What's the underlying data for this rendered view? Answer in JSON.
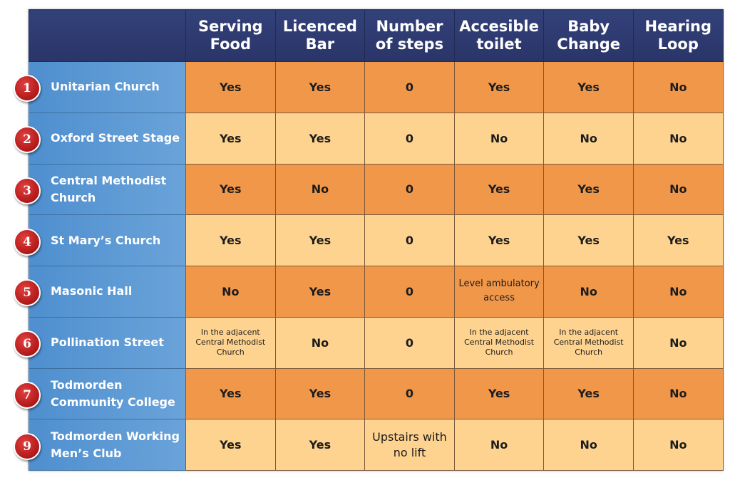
{
  "header": {
    "columns": [
      "Serving Food",
      "Licenced Bar",
      "Number of steps",
      "Accesible toilet",
      "Baby Change",
      "Hearing Loop"
    ]
  },
  "colors": {
    "header_bg": "#2e3a70",
    "venue_bg": "#5b97d3",
    "row_dark": "#f1974a",
    "row_light": "#fed38f",
    "badge_red": "#c01e1e"
  },
  "rows": [
    {
      "num": "1",
      "venue": "Unitarian Church",
      "food": "Yes",
      "bar": "Yes",
      "steps": "0",
      "toilet": "Yes",
      "baby": "Yes",
      "loop": "No"
    },
    {
      "num": "2",
      "venue": "Oxford Street Stage",
      "food": "Yes",
      "bar": "Yes",
      "steps": "0",
      "toilet": "No",
      "baby": "No",
      "loop": "No"
    },
    {
      "num": "3",
      "venue": "Central Methodist Church",
      "food": "Yes",
      "bar": "No",
      "steps": "0",
      "toilet": "Yes",
      "baby": "Yes",
      "loop": "No"
    },
    {
      "num": "4",
      "venue": "St Mary’s Church",
      "food": "Yes",
      "bar": "Yes",
      "steps": "0",
      "toilet": "Yes",
      "baby": "Yes",
      "loop": "Yes"
    },
    {
      "num": "5",
      "venue": "Masonic Hall",
      "food": "No",
      "bar": "Yes",
      "steps": "0",
      "toilet": "Level ambulatory access",
      "baby": "No",
      "loop": "No"
    },
    {
      "num": "6",
      "venue": "Pollination Street",
      "food": "In the adjacent Central Methodist Church",
      "bar": "No",
      "steps": "0",
      "toilet": "In the adjacent Central Methodist Church",
      "baby": "In the adjacent Central Methodist Church",
      "loop": "No"
    },
    {
      "num": "7",
      "venue": "Todmorden Community College",
      "food": "Yes",
      "bar": "Yes",
      "steps": "0",
      "toilet": "Yes",
      "baby": "Yes",
      "loop": "No"
    },
    {
      "num": "9",
      "venue": "Todmorden Working Men’s Club",
      "food": "Yes",
      "bar": "Yes",
      "steps": "Upstairs with no lift",
      "toilet": "No",
      "baby": "No",
      "loop": "No"
    }
  ]
}
